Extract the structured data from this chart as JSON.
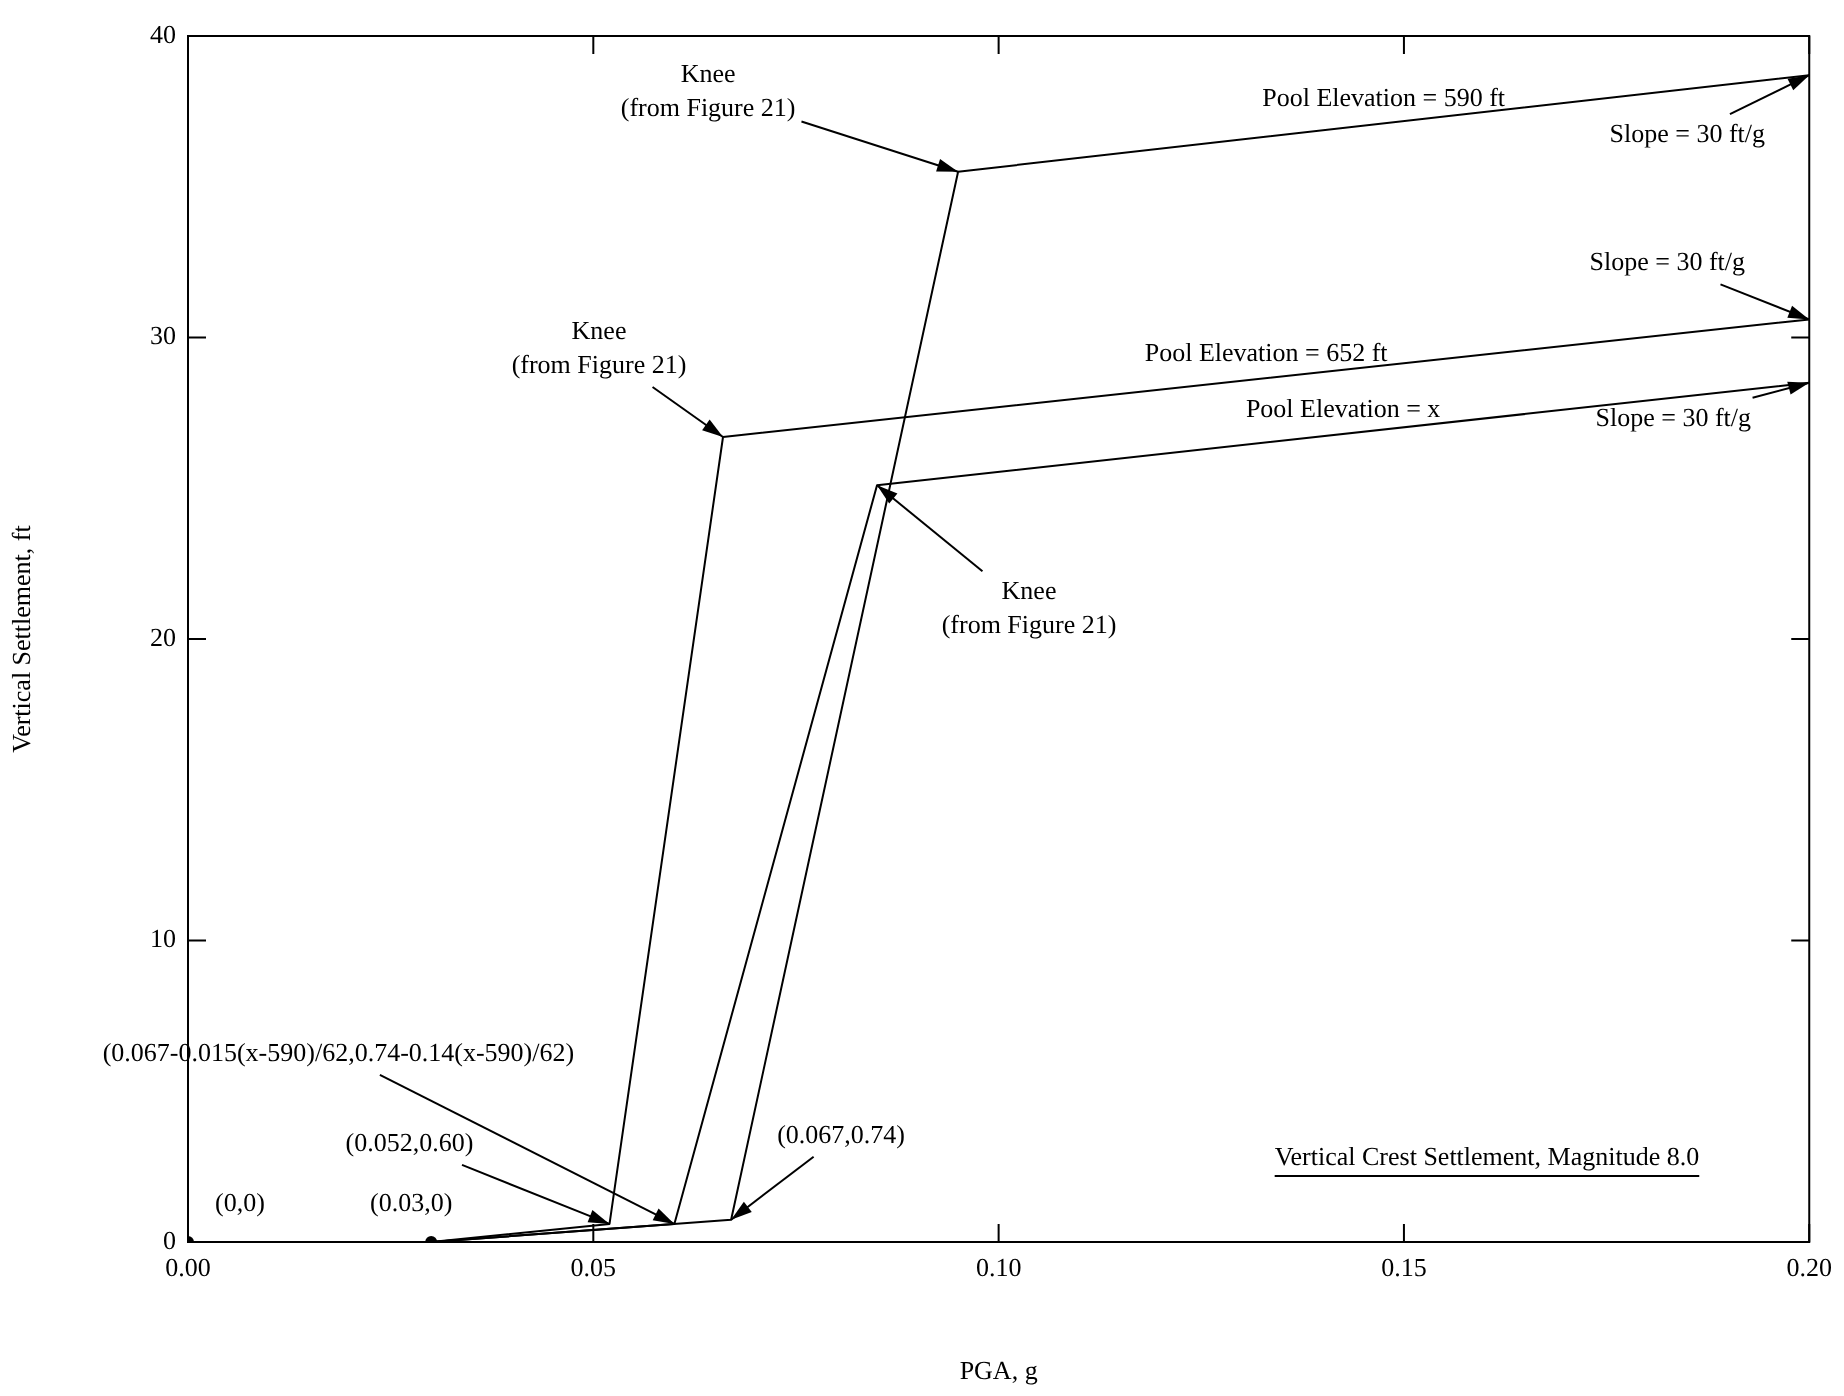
{
  "chart_data": {
    "type": "line",
    "xlabel": "PGA, g",
    "ylabel": "Vertical Settlement, ft",
    "xlim": [
      0,
      0.2
    ],
    "ylim": [
      0,
      40
    ],
    "xticks": [
      {
        "value": 0,
        "label": "0.00"
      },
      {
        "value": 0.05,
        "label": "0.05"
      },
      {
        "value": 0.1,
        "label": "0.10"
      },
      {
        "value": 0.15,
        "label": "0.15"
      },
      {
        "value": 0.2,
        "label": "0.20"
      }
    ],
    "yticks": [
      0,
      10,
      20,
      30,
      40
    ],
    "grid": false,
    "marker": "none",
    "line_style": "solid",
    "series": [
      {
        "name": "Pool Elevation = 590 ft",
        "color": "#000000",
        "x": [
          0.03,
          0.067,
          0.095,
          0.2
        ],
        "values": [
          0,
          0.74,
          35.5,
          38.7
        ]
      },
      {
        "name": "Pool Elevation = 652 ft",
        "color": "#000000",
        "x": [
          0.03,
          0.052,
          0.066,
          0.2
        ],
        "values": [
          0,
          0.6,
          26.7,
          30.6
        ]
      },
      {
        "name": "Pool Elevation = x",
        "color": "#000000",
        "x": [
          0.03,
          0.06,
          0.085,
          0.2
        ],
        "values": [
          0,
          0.6,
          25.1,
          28.5
        ]
      },
      {
        "type": "scatter",
        "marker": "circle",
        "color": "#000000",
        "x": [
          0,
          0.03
        ],
        "values": [
          0,
          0
        ]
      }
    ],
    "annotations": [
      {
        "text": "Knee\n(from Figure 21)",
        "x": 0.095,
        "y": 35.5
      },
      {
        "text": "Knee\n(from Figure 21)",
        "x": 0.066,
        "y": 26.7
      },
      {
        "text": "Knee\n(from Figure 21)",
        "x": 0.085,
        "y": 25.1
      },
      {
        "text": "Slope = 30 ft/g",
        "x": 0.2,
        "y": 38.7
      },
      {
        "text": "Slope = 30 ft/g",
        "x": 0.2,
        "y": 30.6
      },
      {
        "text": "Slope = 30 ft/g",
        "x": 0.2,
        "y": 28.5
      },
      {
        "text": "(0,0)",
        "x": 0,
        "y": 0
      },
      {
        "text": "(0.03,0)",
        "x": 0.03,
        "y": 0
      },
      {
        "text": "(0.052,0.60)",
        "x": 0.052,
        "y": 0.6
      },
      {
        "text": "(0.067-0.015(x-590)/62,0.74-0.14(x-590)/62)",
        "x": 0.06,
        "y": 0.6
      },
      {
        "text": "(0.067,0.74)",
        "x": 0.067,
        "y": 0.74
      },
      "Vertical Crest Settlement, Magnitude 8.0"
    ]
  }
}
